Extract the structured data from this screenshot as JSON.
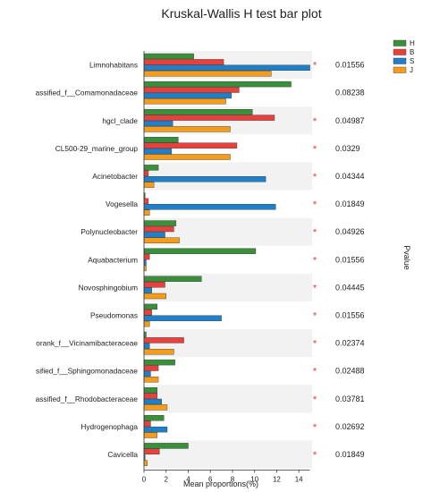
{
  "chart_data": {
    "type": "bar",
    "orientation": "horizontal",
    "title": "Kruskal-Wallis H test bar plot",
    "xlabel": "Mean proportions(%)",
    "ylabel_right": "Pvalue",
    "xlim": [
      0,
      15
    ],
    "xticks": [
      0,
      2,
      4,
      6,
      8,
      10,
      12,
      14
    ],
    "legend_position": "top-right",
    "grid": false,
    "categories": [
      "Limnohabitans",
      "assified_f__Comamonadaceae",
      "hgcl_clade",
      "CL500-29_marine_group",
      "Acinetobacter",
      "Vogesella",
      "Polynucleobacter",
      "Aquabacterium",
      "Novosphingobium",
      "Pseudomonas",
      "orank_f__Vicinamibacteraceae",
      "sified_f__Sphingomonadaceae",
      "assified_f__Rhodobacteraceae",
      "Hydrogenophaga",
      "Cavicella"
    ],
    "pvalues": [
      "0.01556",
      "0.08238",
      "0.04987",
      "0.0329",
      "0.04344",
      "0.01849",
      "0.04926",
      "0.01556",
      "0.04445",
      "0.01556",
      "0.02374",
      "0.02488",
      "0.03781",
      "0.02692",
      "0.01849"
    ],
    "significant": [
      true,
      false,
      true,
      true,
      true,
      true,
      true,
      true,
      true,
      true,
      true,
      true,
      true,
      true,
      true
    ],
    "series": [
      {
        "name": "H",
        "color": "#3a8f3a",
        "values": [
          4.5,
          13.3,
          9.8,
          3.1,
          1.3,
          0.1,
          2.9,
          10.1,
          5.2,
          1.2,
          0.2,
          2.8,
          1.2,
          1.8,
          4.0
        ]
      },
      {
        "name": "B",
        "color": "#e8403a",
        "values": [
          7.2,
          8.6,
          11.8,
          8.4,
          0.4,
          0.4,
          2.7,
          0.5,
          1.9,
          0.7,
          3.6,
          1.3,
          1.2,
          0.6,
          1.4
        ]
      },
      {
        "name": "S",
        "color": "#1f7fc8",
        "values": [
          15.0,
          7.9,
          2.6,
          2.5,
          11.0,
          11.9,
          1.9,
          0.2,
          0.7,
          7.0,
          0.5,
          0.6,
          1.6,
          2.1,
          0.1
        ]
      },
      {
        "name": "J",
        "color": "#f59d1b",
        "values": [
          11.5,
          7.4,
          7.8,
          7.8,
          0.9,
          0.5,
          3.2,
          0.2,
          2.0,
          0.5,
          2.7,
          1.3,
          2.1,
          1.2,
          0.3
        ]
      }
    ]
  }
}
